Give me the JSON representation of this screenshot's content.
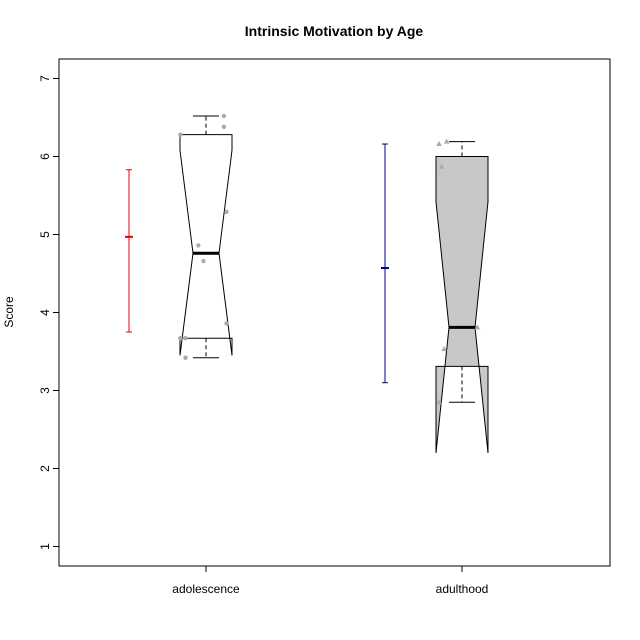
{
  "chart_data": {
    "type": "box",
    "title": "Intrinsic Motivation by Age",
    "xlabel": "",
    "ylabel": "Score",
    "ylim": [
      0.75,
      7.25
    ],
    "yticks": [
      1,
      2,
      3,
      4,
      5,
      6,
      7
    ],
    "categories": [
      "adolescence",
      "adulthood"
    ],
    "boxes": [
      {
        "category": "adolescence",
        "min": 3.42,
        "q1": 3.67,
        "median": 4.76,
        "q3": 6.28,
        "max": 6.52,
        "notch_low": 3.45,
        "notch_high": 6.08,
        "fill": "#ffffff"
      },
      {
        "category": "adulthood",
        "min": 2.85,
        "q1": 3.31,
        "median": 3.81,
        "q3": 6.0,
        "max": 6.19,
        "notch_low": 2.2,
        "notch_high": 5.42,
        "fill": "#c8c8c8"
      }
    ],
    "points": [
      {
        "category": "adolescence",
        "marker": "circle",
        "color": "#aaaaaa",
        "x": [
          0.9,
          0.9,
          0.92,
          0.92,
          0.97,
          0.99,
          1.07,
          1.07,
          1.08,
          1.08
        ],
        "y": [
          6.28,
          3.67,
          3.67,
          3.42,
          4.86,
          4.66,
          6.52,
          6.38,
          5.29,
          3.86
        ]
      },
      {
        "category": "adulthood",
        "marker": "triangle",
        "color": "#aaaaaa",
        "x": [
          1.91,
          1.92,
          1.93,
          1.94,
          1.91,
          2.06
        ],
        "y": [
          6.16,
          5.87,
          3.53,
          6.19,
          2.85,
          3.81
        ]
      }
    ],
    "mean_se": [
      {
        "category": "adolescence",
        "mean": 4.97,
        "low": 3.75,
        "high": 5.83,
        "color": "#e8000b"
      },
      {
        "category": "adulthood",
        "mean": 4.57,
        "low": 3.1,
        "high": 6.16,
        "color": "#00008b"
      }
    ]
  }
}
